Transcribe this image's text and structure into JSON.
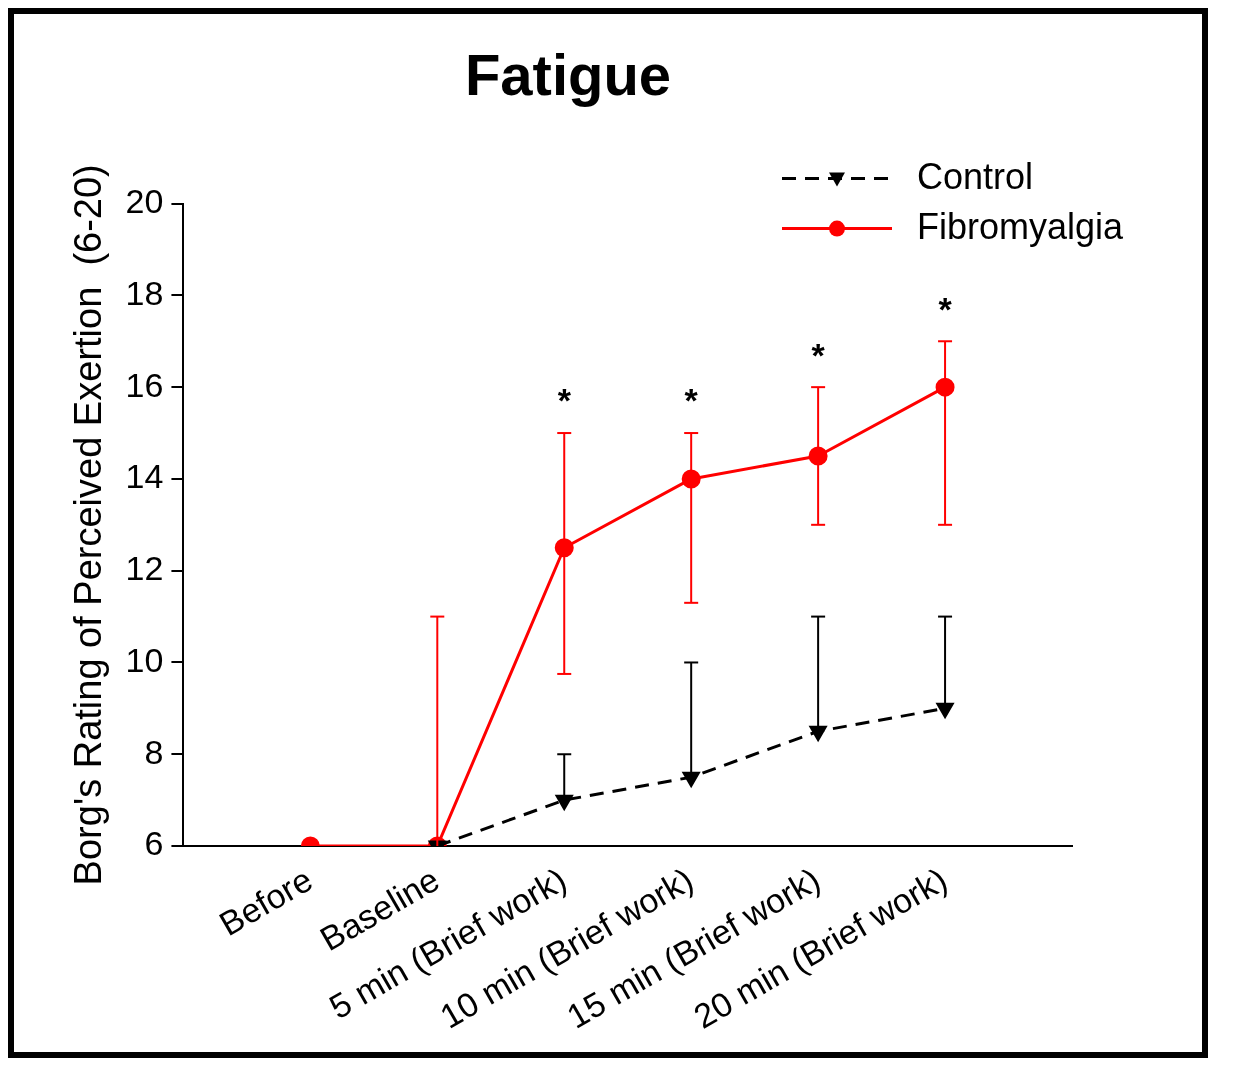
{
  "chart_data": {
    "type": "line",
    "title": "Fatigue",
    "ylabel": "Borg's Rating of Perceived Exertion  (6-20)",
    "categories": [
      "Before",
      "Baseline",
      "5 min (Brief work)",
      "10 min (Brief work)",
      "15 min (Brief work)",
      "20 min (Brief work)"
    ],
    "series": [
      {
        "name": "Control",
        "color": "#000000",
        "marker": "triangle",
        "line_style": "dashed",
        "values": [
          null,
          6,
          7,
          7.5,
          8.5,
          9
        ],
        "errors": [
          null,
          null,
          [
            7,
            8
          ],
          [
            7.5,
            10
          ],
          [
            8.5,
            11
          ],
          [
            9,
            11
          ]
        ]
      },
      {
        "name": "Fibromyalgia",
        "color": "#ff0000",
        "marker": "circle",
        "line_style": "solid",
        "values": [
          6,
          6,
          12.5,
          14,
          14.5,
          16
        ],
        "errors": [
          null,
          [
            6,
            11
          ],
          [
            9.75,
            15
          ],
          [
            11.3,
            15
          ],
          [
            13,
            16
          ],
          [
            13,
            17
          ]
        ]
      }
    ],
    "ylim": [
      6,
      20
    ],
    "yticks": [
      6,
      8,
      10,
      12,
      14,
      16,
      18,
      20
    ],
    "grid": false,
    "legend": "top right",
    "annotations": [
      {
        "text": "*",
        "x": "5 min (Brief work)",
        "y": 15
      },
      {
        "text": "*",
        "x": "10 min (Brief work)",
        "y": 15
      },
      {
        "text": "*",
        "x": "15 min (Brief work)",
        "y": 16
      },
      {
        "text": "*",
        "x": "20 min (Brief work)",
        "y": 17
      }
    ]
  }
}
